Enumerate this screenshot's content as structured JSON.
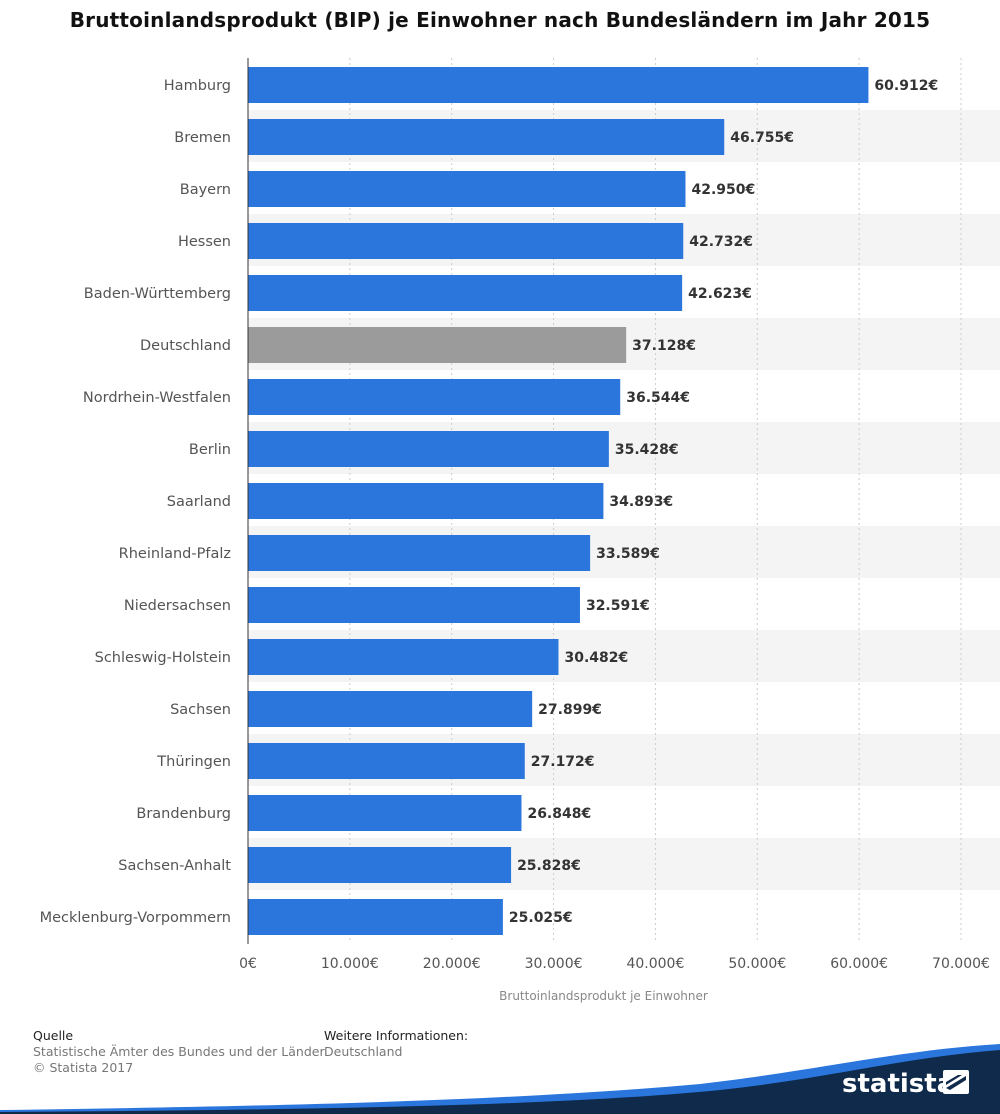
{
  "chart_data": {
    "type": "bar",
    "orientation": "horizontal",
    "title": "Bruttoinlandsprodukt (BIP) je Einwohner nach Bundesländern im Jahr 2015",
    "xlabel": "Bruttoinlandsprodukt je Einwohner",
    "ylabel": "",
    "xlim": [
      0,
      70000
    ],
    "x_ticks": [
      0,
      10000,
      20000,
      30000,
      40000,
      50000,
      60000,
      70000
    ],
    "x_tick_labels": [
      "0€",
      "10.000€",
      "20.000€",
      "30.000€",
      "40.000€",
      "50.000€",
      "60.000€",
      "70.000€"
    ],
    "grid": true,
    "categories": [
      "Hamburg",
      "Bremen",
      "Bayern",
      "Hessen",
      "Baden-Württemberg",
      "Deutschland",
      "Nordrhein-Westfalen",
      "Berlin",
      "Saarland",
      "Rheinland-Pfalz",
      "Niedersachsen",
      "Schleswig-Holstein",
      "Sachsen",
      "Thüringen",
      "Brandenburg",
      "Sachsen-Anhalt",
      "Mecklenburg-Vorpommern"
    ],
    "values": [
      60912,
      46755,
      42950,
      42732,
      42623,
      37128,
      36544,
      35428,
      34893,
      33589,
      32591,
      30482,
      27899,
      27172,
      26848,
      25828,
      25025
    ],
    "value_labels": [
      "60.912€",
      "46.755€",
      "42.950€",
      "42.732€",
      "42.623€",
      "37.128€",
      "36.544€",
      "35.428€",
      "34.893€",
      "33.589€",
      "32.591€",
      "30.482€",
      "27.899€",
      "27.172€",
      "26.848€",
      "25.828€",
      "25.025€"
    ],
    "highlight_category": "Deutschland",
    "colors": {
      "bar": "#2a76dd",
      "highlight": "#9b9b9b",
      "band": "#f4f4f4",
      "grid": "#cccccc"
    }
  },
  "footer": {
    "source_heading": "Quelle",
    "source_text": "Statistische Ämter des Bundes und der Länder",
    "copyright": "© Statista 2017",
    "info_heading": "Weitere Informationen:",
    "info_text": "Deutschland"
  },
  "brand": {
    "name": "statista",
    "logo_icon": "statista-logo-icon",
    "colors": {
      "dark": "#0f2a4a",
      "accent": "#2a76dd"
    }
  }
}
